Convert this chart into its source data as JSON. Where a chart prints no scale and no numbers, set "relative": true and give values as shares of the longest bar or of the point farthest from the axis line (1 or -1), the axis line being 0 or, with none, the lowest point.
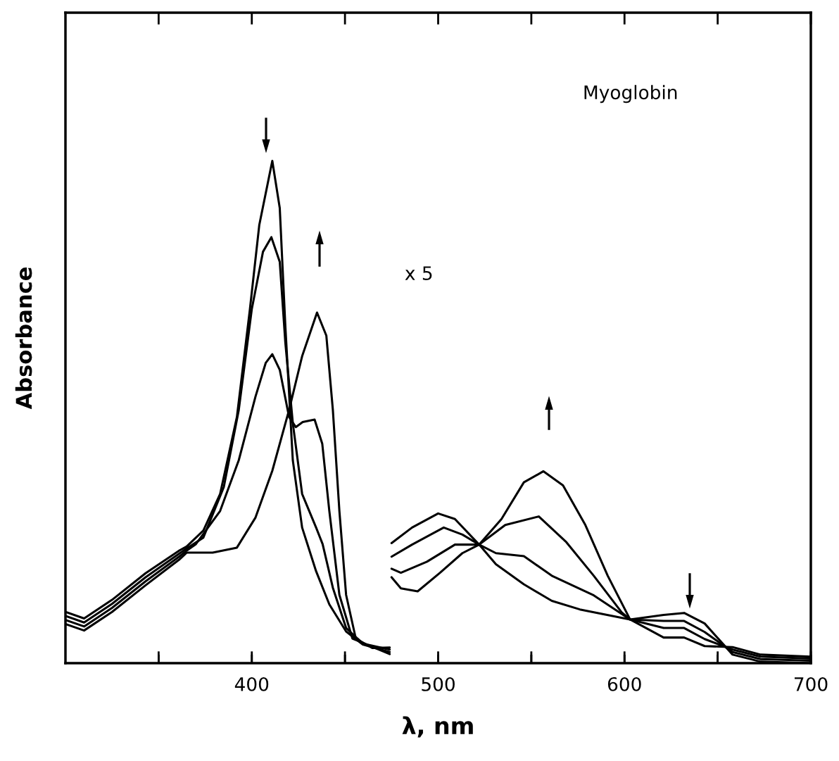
{
  "chart_data": {
    "type": "line",
    "relative": true,
    "xlabel": "λ, nm",
    "ylabel": "Absorbance",
    "annotations": [
      "Myoglobin",
      "x 5"
    ],
    "xlim": [
      300,
      700
    ],
    "xticks": [
      {
        "value": 350,
        "label": null
      },
      400,
      {
        "value": 450,
        "label": null
      },
      500,
      {
        "value": 550,
        "label": null
      },
      600,
      {
        "value": 650,
        "label": null
      },
      700
    ],
    "tick_labels": "x",
    "grid": false,
    "marker": "none",
    "line_style": "solid",
    "series": [
      {
        "color": "#000000",
        "x": [
          300,
          310,
          325,
          343,
          361,
          365,
          374,
          383,
          392,
          399,
          404,
          411,
          415,
          418,
          422,
          427,
          434.5,
          441.6,
          450.6,
          459.6,
          474,
          474.5,
          475,
          486,
          500,
          509,
          522,
          531,
          546,
          561,
          576,
          603,
          621,
          632,
          643,
          658,
          673,
          700
        ],
        "values": [
          0.102,
          0.089,
          0.126,
          0.179,
          0.224,
          0.232,
          0.264,
          0.337,
          0.49,
          0.705,
          0.872,
          1.0,
          0.906,
          0.671,
          0.404,
          0.27,
          0.183,
          0.117,
          0.063,
          0.037,
          0.022,
          null,
          0.239,
          0.27,
          0.298,
          0.287,
          0.236,
          0.197,
          0.157,
          0.124,
          0.107,
          0.087,
          0.096,
          0.1,
          0.079,
          0.017,
          0.003,
          0.0
        ]
      },
      {
        "color": "#000000",
        "x": [
          300,
          310,
          325,
          343,
          361,
          365,
          374,
          385,
          393,
          400,
          406,
          410.5,
          415,
          418,
          422,
          427,
          434.5,
          438,
          443.5,
          450.6,
          459.6,
          474,
          474.5,
          475,
          486,
          503,
          513,
          522,
          531,
          546,
          561,
          583.5,
          603,
          621,
          632,
          643,
          658,
          673,
          700
        ],
        "values": [
          0.094,
          0.081,
          0.118,
          0.171,
          0.218,
          0.228,
          0.25,
          0.351,
          0.504,
          0.705,
          0.819,
          0.848,
          0.799,
          0.638,
          0.478,
          0.337,
          0.27,
          0.237,
          0.15,
          0.07,
          0.039,
          0.027,
          null,
          0.212,
          0.236,
          0.27,
          0.256,
          0.236,
          0.219,
          0.213,
          0.174,
          0.135,
          0.087,
          0.084,
          0.084,
          0.062,
          0.022,
          0.008,
          0.005
        ]
      },
      {
        "color": "#000000",
        "x": [
          300,
          310,
          325,
          343,
          361,
          365,
          370,
          383,
          393,
          402,
          407.5,
          411,
          415,
          420,
          423.6,
          427.3,
          433.7,
          437.8,
          441.6,
          447,
          454,
          474,
          474.5,
          475,
          480,
          494,
          509,
          522,
          536,
          554,
          568.5,
          583.5,
          598.5,
          603,
          621,
          632,
          643,
          658,
          673,
          700
        ],
        "values": [
          0.086,
          0.073,
          0.11,
          0.163,
          0.212,
          0.224,
          0.237,
          0.303,
          0.404,
          0.531,
          0.598,
          0.615,
          0.584,
          0.49,
          0.47,
          0.48,
          0.485,
          0.437,
          0.303,
          0.136,
          0.049,
          0.018,
          null,
          0.188,
          0.18,
          0.202,
          0.236,
          0.236,
          0.275,
          0.292,
          0.242,
          0.174,
          0.101,
          0.087,
          0.07,
          0.07,
          0.048,
          0.027,
          0.013,
          0.009
        ]
      },
      {
        "color": "#000000",
        "x": [
          300,
          310,
          325,
          343,
          361,
          365,
          379,
          392,
          402,
          411,
          420,
          427,
          435,
          440,
          443.5,
          447,
          450.6,
          455.8,
          464.8,
          474,
          474.5,
          475,
          480,
          489,
          501,
          513,
          522,
          534,
          546,
          556.5,
          567,
          579,
          591,
          603,
          621,
          632,
          643,
          658,
          673,
          700
        ],
        "values": [
          0.078,
          0.065,
          0.102,
          0.155,
          0.206,
          0.22,
          0.22,
          0.23,
          0.29,
          0.383,
          0.504,
          0.611,
          0.698,
          0.652,
          0.504,
          0.303,
          0.136,
          0.049,
          0.03,
          0.031,
          null,
          0.171,
          0.149,
          0.143,
          0.18,
          0.219,
          0.236,
          0.287,
          0.36,
          0.382,
          0.354,
          0.275,
          0.174,
          0.087,
          0.051,
          0.051,
          0.034,
          0.032,
          0.017,
          0.013
        ]
      }
    ]
  }
}
